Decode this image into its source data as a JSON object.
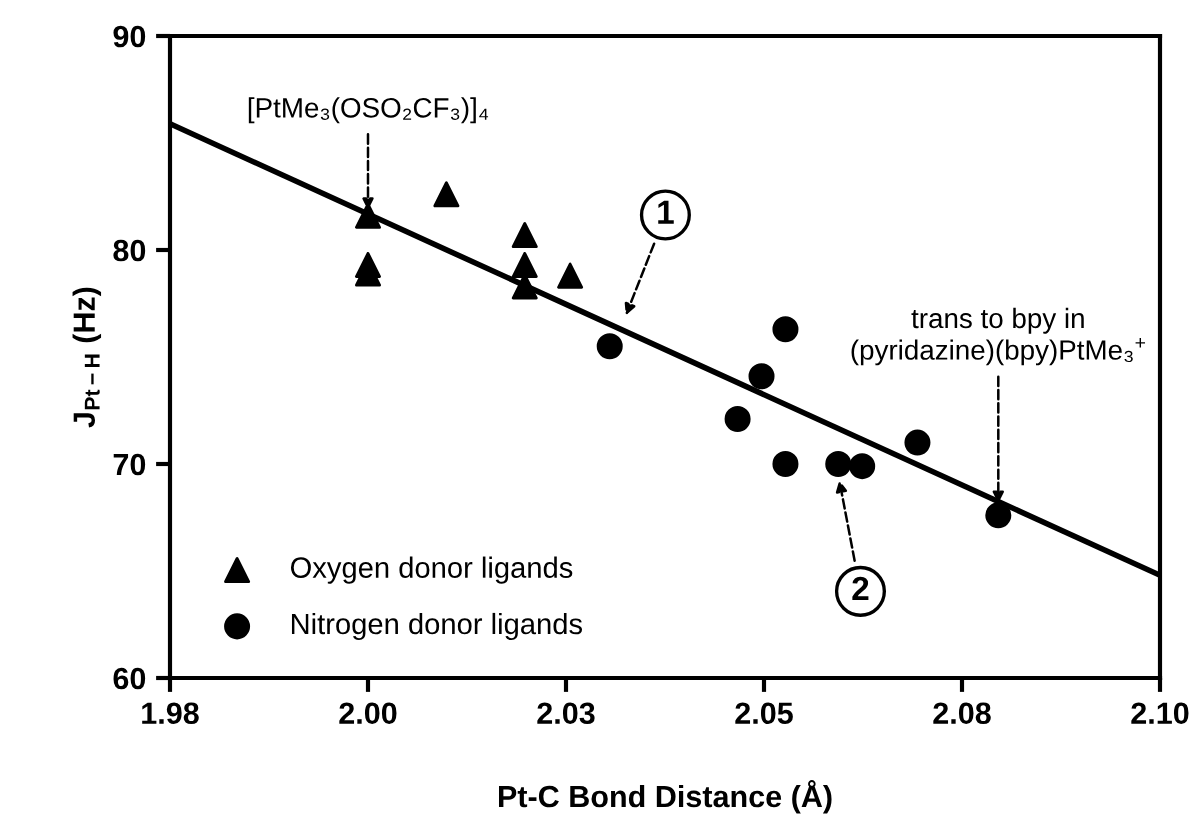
{
  "chart_data": {
    "type": "scatter",
    "xlabel": "Pt-C Bond Distance (Å)",
    "ylabel": "J$_{Pt−H}$ (Hz)",
    "series": [
      {
        "name": "Oxygen donor ligands",
        "color": "#000000",
        "marker": "triangle",
        "x": [
          2.004,
          2.004,
          2.004,
          2.0135,
          2.023,
          2.023,
          2.023,
          2.0285
        ],
        "values": [
          81.6,
          79.3,
          78.9,
          82.6,
          80.7,
          79.3,
          78.3,
          78.8
        ]
      },
      {
        "name": "Nitrogen donor ligands",
        "color": "#000000",
        "marker": "circle",
        "x": [
          2.0333,
          2.0546,
          2.0517,
          2.0488,
          2.0546,
          2.061,
          2.0639,
          2.0706,
          2.0804
        ],
        "values": [
          75.5,
          76.3,
          74.1,
          72.1,
          70.0,
          70.0,
          69.9,
          71.0,
          67.6
        ]
      },
      {
        "type": "line",
        "color": "#000000",
        "line_style": "solid",
        "x": [
          1.98,
          2.1
        ],
        "values": [
          85.9,
          64.8
        ]
      }
    ],
    "annotations": [
      {
        "text": "[PtMe₃(OSO₂CF₃)]₄",
        "x": 2.004,
        "y": 81.6
      },
      {
        "text": "1",
        "x": 2.035,
        "y": 76.7
      },
      {
        "text": "2",
        "x": 2.061,
        "y": 69.5
      },
      {
        "text": "trans to bpy in\n(pyridazine)(bpy)PtMe₃$^{+}$",
        "x": 2.0804,
        "y": 67.9
      }
    ],
    "xlim": [
      1.98,
      2.1
    ],
    "xticks": [
      1.98,
      {
        "value": 2.004,
        "label": "2.00"
      },
      {
        "value": 2.028,
        "label": "2.03"
      },
      {
        "value": 2.052,
        "label": "2.05"
      },
      {
        "value": 2.076,
        "label": "2.08"
      },
      {
        "value": 2.1,
        "label": "2.10"
      }
    ],
    "ylim": [
      60,
      90
    ],
    "yticks": [
      60,
      70,
      80,
      90
    ],
    "grid": false,
    "legend": "bottom left"
  }
}
